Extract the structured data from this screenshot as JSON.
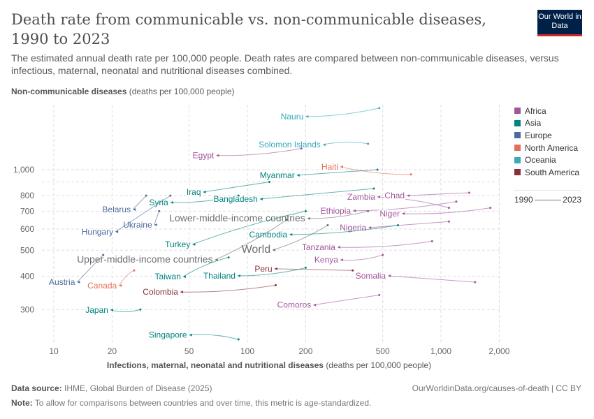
{
  "header": {
    "title": "Death rate from communicable vs. non-communicable diseases, 1990 to 2023",
    "subtitle": "The estimated annual death rate per 100,000 people. Death rates are compared between non-communicable diseases, versus infectious, maternal, neonatal and nutritional diseases combined.",
    "logo_text": "Our World in Data"
  },
  "footer": {
    "source_label": "Data source:",
    "source": "IHME, Global Burden of Disease (2025)",
    "url": "OurWorldinData.org/causes-of-death | CC BY",
    "note_label": "Note:",
    "note": "To allow for comparisons between countries and over time, this metric is age-standardized."
  },
  "chart_data": {
    "type": "scatter",
    "title": "Death rate from communicable vs. non-communicable diseases, 1990 to 2023",
    "xlabel_bold": "Infections, maternal, neonatal and nutritional diseases",
    "xlabel_unit": "(deaths per 100,000 people)",
    "ylabel_bold": "Non-communicable diseases",
    "ylabel_unit": "(deaths per 100,000 people)",
    "x_scale": "log",
    "y_scale": "log",
    "xlim": [
      8,
      2300
    ],
    "ylim": [
      225,
      1750
    ],
    "x_ticks": [
      10,
      20,
      50,
      100,
      200,
      500,
      1000,
      2000
    ],
    "x_tick_labels": [
      "10",
      "20",
      "50",
      "100",
      "200",
      "500",
      "1,000",
      "2,000"
    ],
    "y_ticks": [
      300,
      400,
      500,
      600,
      700,
      800,
      1000
    ],
    "y_tick_labels": [
      "300",
      "400",
      "500",
      "600",
      "700",
      "800",
      "1,000"
    ],
    "y_unlabeled_gridlines": [
      900
    ],
    "grid": true,
    "legend_position": "right",
    "legend": [
      {
        "name": "Africa",
        "color": "#a2559c"
      },
      {
        "name": "Asia",
        "color": "#00847e"
      },
      {
        "name": "Europe",
        "color": "#4c6a9c"
      },
      {
        "name": "North America",
        "color": "#e56e5a"
      },
      {
        "name": "Oceania",
        "color": "#38aaba"
      },
      {
        "name": "South America",
        "color": "#883039"
      }
    ],
    "time_range": {
      "start": "1990",
      "end": "2023"
    },
    "series": [
      {
        "name": "Nauru",
        "region": "Oceania",
        "start": [
          480,
          1700
        ],
        "end": [
          200,
          1580
        ]
      },
      {
        "name": "Solomon Islands",
        "region": "Oceania",
        "start": [
          420,
          1250
        ],
        "end": [
          245,
          1240
        ]
      },
      {
        "name": "Egypt",
        "region": "Africa",
        "start": [
          190,
          1200
        ],
        "end": [
          69,
          1130
        ]
      },
      {
        "name": "Haiti",
        "region": "North America",
        "start": [
          700,
          960
        ],
        "end": [
          302,
          1025
        ]
      },
      {
        "name": "Myanmar",
        "region": "Asia",
        "start": [
          470,
          1000
        ],
        "end": [
          180,
          953
        ]
      },
      {
        "name": "Iraq",
        "region": "Asia",
        "start": [
          130,
          900
        ],
        "end": [
          59,
          825
        ]
      },
      {
        "name": "Syria",
        "region": "Asia",
        "start": [
          90,
          800
        ],
        "end": [
          40,
          754
        ]
      },
      {
        "name": "Bangladesh",
        "region": "Asia",
        "start": [
          450,
          850
        ],
        "end": [
          116,
          777
        ]
      },
      {
        "name": "Zambia",
        "region": "Africa",
        "start": [
          1100,
          720
        ],
        "end": [
          469,
          791
        ]
      },
      {
        "name": "Chad",
        "region": "Africa",
        "start": [
          1400,
          820
        ],
        "end": [
          666,
          800
        ]
      },
      {
        "name": "Belarus",
        "region": "Europe",
        "start": [
          30,
          800
        ],
        "end": [
          25.6,
          710
        ]
      },
      {
        "name": "Ethiopia",
        "region": "Africa",
        "start": [
          1200,
          760
        ],
        "end": [
          351,
          702
        ]
      },
      {
        "name": "Niger",
        "region": "Africa",
        "start": [
          1800,
          720
        ],
        "end": [
          628,
          685
        ]
      },
      {
        "name": "Lower-middle-income countries",
        "region": "Aggregate",
        "start": [
          420,
          700
        ],
        "end": [
          204,
          657
        ]
      },
      {
        "name": "Ukraine",
        "region": "Europe",
        "start": [
          35,
          700
        ],
        "end": [
          33,
          622
        ]
      },
      {
        "name": "Hungary",
        "region": "Europe",
        "start": [
          40,
          800
        ],
        "end": [
          20.8,
          586
        ]
      },
      {
        "name": "Nigeria",
        "region": "Africa",
        "start": [
          1100,
          640
        ],
        "end": [
          422,
          607
        ]
      },
      {
        "name": "Cambodia",
        "region": "Asia",
        "start": [
          600,
          620
        ],
        "end": [
          165,
          572
        ]
      },
      {
        "name": "Turkey",
        "region": "Asia",
        "start": [
          200,
          700
        ],
        "end": [
          52,
          526
        ]
      },
      {
        "name": "World",
        "region": "Aggregate",
        "start": [
          260,
          620
        ],
        "end": [
          135,
          501
        ]
      },
      {
        "name": "Tanzania",
        "region": "Africa",
        "start": [
          900,
          540
        ],
        "end": [
          292,
          513
        ]
      },
      {
        "name": "Upper-middle-income countries",
        "region": "Aggregate",
        "start": [
          160,
          650
        ],
        "end": [
          68,
          460
        ]
      },
      {
        "name": "Kenya",
        "region": "Africa",
        "start": [
          500,
          480
        ],
        "end": [
          302,
          460
        ]
      },
      {
        "name": "Peru",
        "region": "South America",
        "start": [
          350,
          420
        ],
        "end": [
          138,
          426
        ]
      },
      {
        "name": "Somalia",
        "region": "Africa",
        "start": [
          1500,
          380
        ],
        "end": [
          532,
          401
        ]
      },
      {
        "name": "Thailand",
        "region": "Asia",
        "start": [
          200,
          430
        ],
        "end": [
          89,
          401
        ]
      },
      {
        "name": "Taiwan",
        "region": "Asia",
        "start": [
          80,
          470
        ],
        "end": [
          46.5,
          398
        ]
      },
      {
        "name": "Austria",
        "region": "Europe",
        "start": [
          18,
          480
        ],
        "end": [
          13.2,
          380
        ]
      },
      {
        "name": "Canada",
        "region": "North America",
        "start": [
          26,
          420
        ],
        "end": [
          21.7,
          369
        ]
      },
      {
        "name": "Colombia",
        "region": "South America",
        "start": [
          140,
          370
        ],
        "end": [
          45,
          349
        ]
      },
      {
        "name": "Comoros",
        "region": "Africa",
        "start": [
          480,
          340
        ],
        "end": [
          219,
          312
        ]
      },
      {
        "name": "Japan",
        "region": "Asia",
        "start": [
          28,
          300
        ],
        "end": [
          19.6,
          299
        ]
      },
      {
        "name": "Singapore",
        "region": "Asia",
        "start": [
          90,
          232
        ],
        "end": [
          50,
          241
        ]
      }
    ]
  }
}
